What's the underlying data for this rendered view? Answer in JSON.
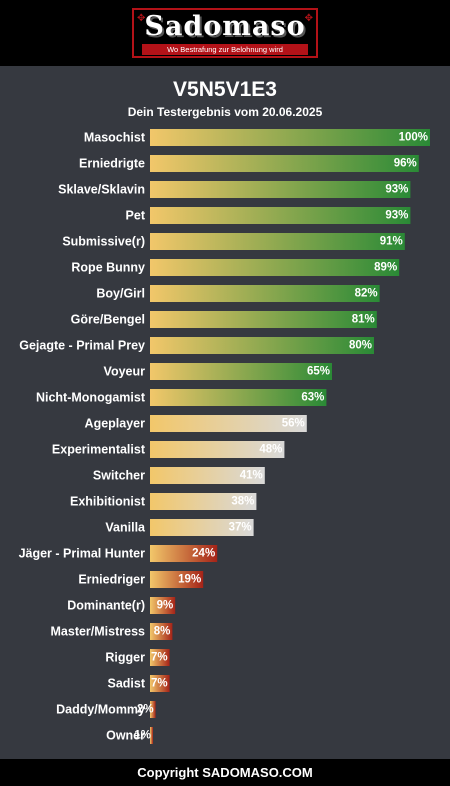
{
  "header": {
    "logo_text": "Sadomaso",
    "tagline": "Wo Bestrafung zur Belohnung wird"
  },
  "title": "V5N5V1E3",
  "subtitle": "Dein Testergebnis vom 20.06.2025",
  "footer": "Copyright SADOMASO.COM",
  "colors": {
    "background": "#363940",
    "bar_start": "#f2c76a",
    "green": "#2a8a36",
    "light": "#d9d9d9",
    "red": "#a52318"
  },
  "chart_data": {
    "type": "bar",
    "orientation": "horizontal",
    "xlim": [
      0,
      100
    ],
    "unit": "%",
    "categories": [
      "Masochist",
      "Erniedrigte",
      "Sklave/Sklavin",
      "Pet",
      "Submissive(r)",
      "Rope Bunny",
      "Boy/Girl",
      "Göre/Bengel",
      "Gejagte - Primal Prey",
      "Voyeur",
      "Nicht-Monogamist",
      "Ageplayer",
      "Experimentalist",
      "Switcher",
      "Exhibitionist",
      "Vanilla",
      "Jäger - Primal Hunter",
      "Erniedriger",
      "Dominante(r)",
      "Master/Mistress",
      "Rigger",
      "Sadist",
      "Daddy/Mommy",
      "Owner"
    ],
    "values": [
      100,
      96,
      93,
      93,
      91,
      89,
      82,
      81,
      80,
      65,
      63,
      56,
      48,
      41,
      38,
      37,
      24,
      19,
      9,
      8,
      7,
      7,
      2,
      1
    ],
    "labels": [
      "100%",
      "96%",
      "93%",
      "93%",
      "91%",
      "89%",
      "82%",
      "81%",
      "80%",
      "65%",
      "63%",
      "56%",
      "48%",
      "41%",
      "38%",
      "37%",
      "24%",
      "19%",
      "9%",
      "8%",
      "7%",
      "7%",
      "2%",
      "1%"
    ],
    "groups": [
      "green",
      "green",
      "green",
      "green",
      "green",
      "green",
      "green",
      "green",
      "green",
      "green",
      "green",
      "light",
      "light",
      "light",
      "light",
      "light",
      "red",
      "red",
      "red",
      "red",
      "red",
      "red",
      "red",
      "red"
    ]
  }
}
